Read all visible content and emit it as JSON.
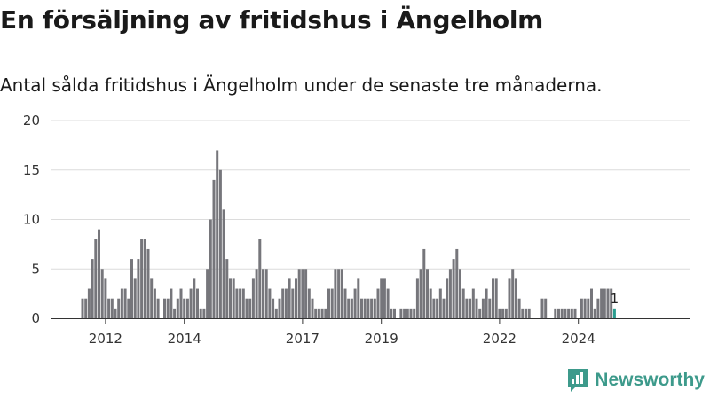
{
  "title": "En försäljning av fritidshus i Ängelholm",
  "subtitle": "Antal sålda fritidshus i Ängelholm under de senaste tre månaderna.",
  "brand": {
    "name": "Newsworthy",
    "color": "#3d9a8b"
  },
  "chart_data": {
    "type": "bar",
    "start": "2011-06",
    "x_tick_labels": [
      "2012",
      "2014",
      "2017",
      "2019",
      "2022",
      "2024"
    ],
    "x_tick_dates": [
      "2012-01",
      "2014-01",
      "2017-01",
      "2019-01",
      "2022-01",
      "2024-01"
    ],
    "y_ticks": [
      0,
      5,
      10,
      15,
      20
    ],
    "ylim": [
      0,
      20
    ],
    "grid": true,
    "bar_color": "#76767b",
    "highlight_color": "#2a9d8f",
    "values": [
      2,
      2,
      3,
      6,
      8,
      9,
      5,
      4,
      2,
      2,
      1,
      2,
      3,
      3,
      2,
      6,
      4,
      6,
      8,
      8,
      7,
      4,
      3,
      2,
      0,
      2,
      2,
      3,
      1,
      2,
      3,
      2,
      2,
      3,
      4,
      3,
      1,
      1,
      5,
      10,
      14,
      17,
      15,
      11,
      6,
      4,
      4,
      3,
      3,
      3,
      2,
      2,
      4,
      5,
      8,
      5,
      5,
      3,
      2,
      1,
      2,
      3,
      3,
      4,
      3,
      4,
      5,
      5,
      5,
      3,
      2,
      1,
      1,
      1,
      1,
      3,
      3,
      5,
      5,
      5,
      3,
      2,
      2,
      3,
      4,
      2,
      2,
      2,
      2,
      2,
      3,
      4,
      4,
      3,
      1,
      1,
      0,
      1,
      1,
      1,
      1,
      1,
      4,
      5,
      7,
      5,
      3,
      2,
      2,
      3,
      2,
      4,
      5,
      6,
      7,
      5,
      3,
      2,
      2,
      3,
      2,
      1,
      2,
      3,
      2,
      4,
      4,
      1,
      1,
      1,
      4,
      5,
      4,
      2,
      1,
      1,
      1,
      0,
      0,
      0,
      2,
      2,
      0,
      0,
      1,
      1,
      1,
      1,
      1,
      1,
      1,
      0,
      2,
      2,
      2,
      3,
      1,
      2,
      3,
      3,
      3,
      3,
      1
    ],
    "last_label": "1"
  }
}
